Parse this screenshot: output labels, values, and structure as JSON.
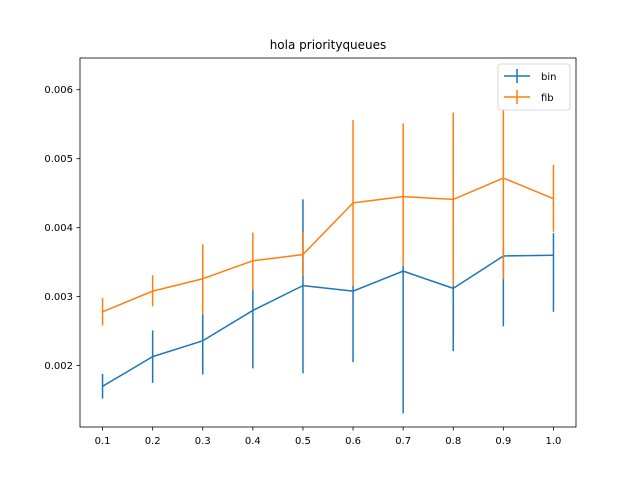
{
  "chart_data": {
    "type": "line",
    "title": "hola priorityqueues",
    "xlabel": "",
    "ylabel": "",
    "x": [
      0.1,
      0.2,
      0.3,
      0.4,
      0.5,
      0.6,
      0.7,
      0.8,
      0.9,
      1.0
    ],
    "xlim": [
      0.055,
      1.045
    ],
    "ylim": [
      0.00111,
      0.00646
    ],
    "xticks": [
      "0.1",
      "0.2",
      "0.3",
      "0.4",
      "0.5",
      "0.6",
      "0.7",
      "0.8",
      "0.9",
      "1.0"
    ],
    "xtick_values": [
      0.1,
      0.2,
      0.3,
      0.4,
      0.5,
      0.6,
      0.7,
      0.8,
      0.9,
      1.0
    ],
    "yticks": [
      "0.002",
      "0.003",
      "0.004",
      "0.005",
      "0.006"
    ],
    "ytick_values": [
      0.002,
      0.003,
      0.004,
      0.005,
      0.006
    ],
    "grid": false,
    "legend_position": "top-right",
    "series": [
      {
        "name": "bin",
        "color": "#1f77b4",
        "values": [
          0.0017,
          0.00213,
          0.00236,
          0.0028,
          0.00316,
          0.00308,
          0.00337,
          0.00312,
          0.00359,
          0.0036
        ],
        "error_low": [
          0.00152,
          0.00175,
          0.00187,
          0.00196,
          0.00189,
          0.00205,
          0.00131,
          0.00221,
          0.00257,
          0.00278
        ],
        "error_high": [
          0.00188,
          0.00251,
          0.00275,
          0.0031,
          0.00441,
          0.00316,
          0.00345,
          0.00316,
          0.00371,
          0.00392
        ]
      },
      {
        "name": "fib",
        "color": "#ff7f0e",
        "values": [
          0.00278,
          0.00308,
          0.00326,
          0.00352,
          0.00361,
          0.00436,
          0.00445,
          0.00441,
          0.00472,
          0.00442
        ],
        "error_low": [
          0.00258,
          0.00286,
          0.00275,
          0.0031,
          0.0033,
          0.00316,
          0.00345,
          0.00316,
          0.00325,
          0.00394
        ],
        "error_high": [
          0.00298,
          0.00331,
          0.00376,
          0.00393,
          0.00394,
          0.00556,
          0.00551,
          0.00567,
          0.0057,
          0.00491
        ]
      }
    ]
  }
}
